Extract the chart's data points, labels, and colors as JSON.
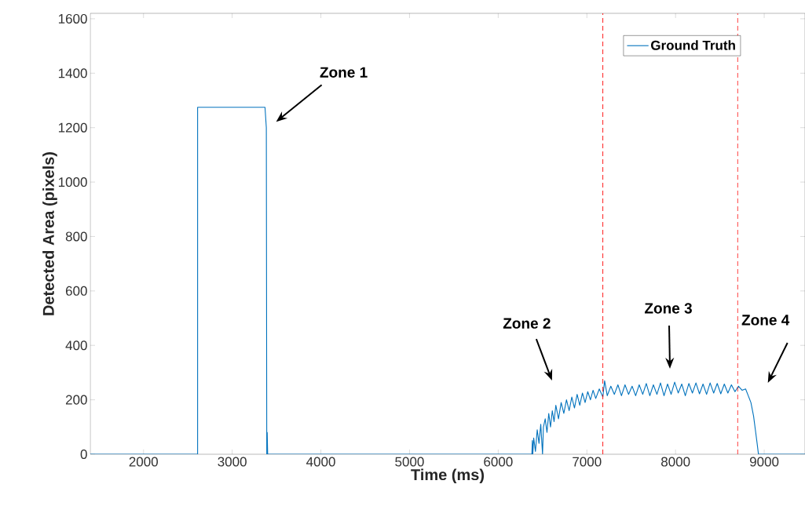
{
  "chart_data": {
    "type": "line",
    "xlabel": "Time (ms)",
    "ylabel": "Detected Area (pixels)",
    "xlim": [
      1400,
      9460
    ],
    "ylim": [
      0,
      1620
    ],
    "xticks": [
      2000,
      3000,
      4000,
      5000,
      6000,
      7000,
      8000,
      9000
    ],
    "yticks": [
      0,
      200,
      400,
      600,
      800,
      1000,
      1200,
      1400,
      1600
    ],
    "grid": false,
    "legend": "top right",
    "line_style": "solid",
    "marker": "none",
    "series": [
      {
        "name": "Ground Truth",
        "color": "#0072bd",
        "x": [
          1400,
          2610,
          2610,
          3370,
          3385,
          3390,
          3395,
          3400,
          6380,
          6385,
          6390,
          6400,
          6420,
          6440,
          6460,
          6480,
          6500,
          6510,
          6530,
          6550,
          6570,
          6590,
          6610,
          6630,
          6650,
          6680,
          6710,
          6740,
          6770,
          6800,
          6830,
          6860,
          6890,
          6920,
          6950,
          6980,
          7010,
          7040,
          7070,
          7100,
          7140,
          7180,
          7200,
          7230,
          7270,
          7310,
          7350,
          7390,
          7430,
          7470,
          7510,
          7550,
          7590,
          7630,
          7670,
          7710,
          7750,
          7790,
          7830,
          7870,
          7910,
          7950,
          7990,
          8030,
          8070,
          8110,
          8150,
          8190,
          8230,
          8270,
          8310,
          8350,
          8390,
          8430,
          8470,
          8510,
          8550,
          8590,
          8630,
          8670,
          8710,
          8750,
          8790,
          8820,
          8850,
          8880,
          8900,
          8920,
          8935,
          9460
        ],
        "values": [
          0,
          0,
          1275,
          1275,
          1200,
          0,
          80,
          0,
          0,
          50,
          0,
          60,
          10,
          90,
          40,
          110,
          0,
          100,
          130,
          80,
          150,
          100,
          160,
          120,
          180,
          130,
          190,
          150,
          200,
          160,
          210,
          170,
          220,
          180,
          225,
          190,
          230,
          200,
          235,
          205,
          240,
          210,
          270,
          215,
          250,
          220,
          255,
          215,
          255,
          220,
          250,
          215,
          255,
          220,
          260,
          215,
          255,
          220,
          262,
          215,
          258,
          220,
          265,
          225,
          258,
          215,
          260,
          225,
          262,
          222,
          258,
          220,
          262,
          225,
          260,
          222,
          258,
          225,
          255,
          230,
          250,
          235,
          240,
          215,
          190,
          140,
          90,
          40,
          0,
          0
        ]
      }
    ],
    "ref_lines": [
      {
        "axis": "x",
        "value": 7180,
        "color": "#ff0000",
        "line_style": "dashed"
      },
      {
        "axis": "x",
        "value": 8700,
        "color": "#ff0000",
        "line_style": "dashed"
      }
    ],
    "annotations": [
      "Zone 1",
      "Zone 2",
      "Zone 3",
      "Zone 4"
    ]
  }
}
